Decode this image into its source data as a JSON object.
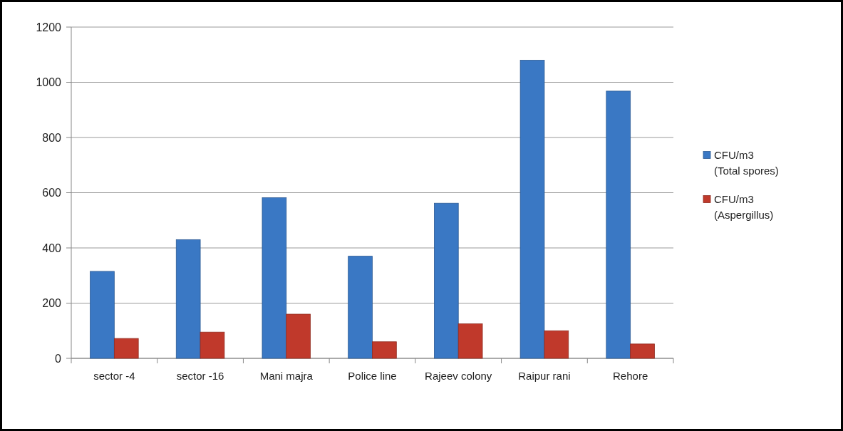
{
  "chart_data": {
    "type": "bar",
    "categories": [
      "sector -4",
      "sector -16",
      "Mani majra",
      "Police line",
      "Rajeev colony",
      "Raipur rani",
      "Rehore"
    ],
    "series": [
      {
        "name": "CFU/m3 (Total spores)",
        "color": "#3a78c4",
        "values": [
          315,
          430,
          582,
          370,
          562,
          1080,
          968
        ]
      },
      {
        "name": "CFU/m3 (Aspergillus)",
        "color": "#c0392b",
        "values": [
          72,
          95,
          160,
          60,
          125,
          100,
          52
        ]
      }
    ],
    "ylim": [
      0,
      1200
    ],
    "yticks": [
      0,
      200,
      400,
      600,
      800,
      1000,
      1200
    ],
    "grid": "y",
    "legend": "right"
  }
}
